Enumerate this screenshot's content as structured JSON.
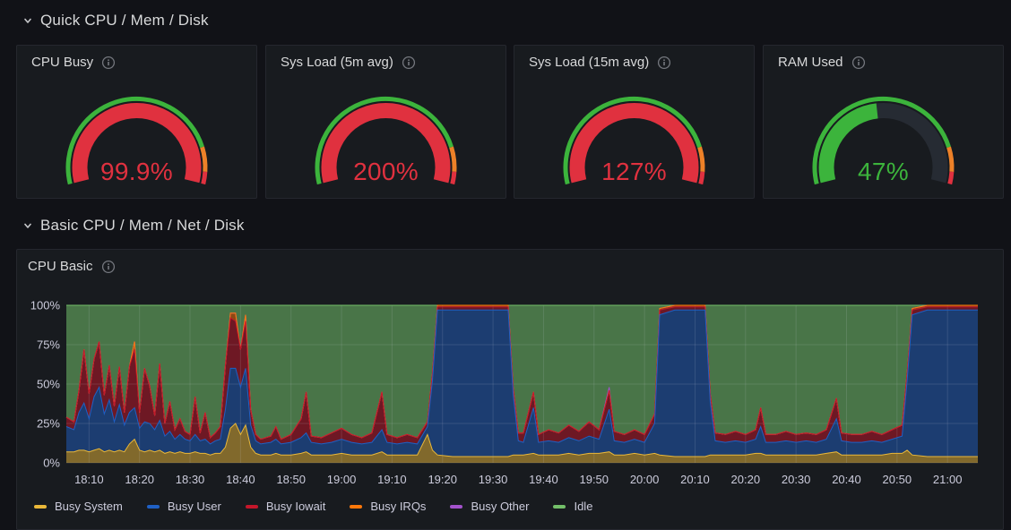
{
  "sections": {
    "quick": {
      "title": "Quick CPU / Mem / Disk"
    },
    "basic": {
      "title": "Basic CPU / Mem / Net / Disk"
    }
  },
  "gauges": [
    {
      "title": "CPU Busy",
      "display": "99.9%",
      "percent": 99.9,
      "level": "red"
    },
    {
      "title": "Sys Load (5m avg)",
      "display": "200%",
      "percent": 100,
      "level": "red"
    },
    {
      "title": "Sys Load (15m avg)",
      "display": "127%",
      "percent": 100,
      "level": "red"
    },
    {
      "title": "RAM Used",
      "display": "47%",
      "percent": 47,
      "level": "green"
    }
  ],
  "gauge_style": {
    "colors": {
      "green": "#3CB43C",
      "orange": "#ED8128",
      "red": "#E0313F"
    },
    "thresholds": [
      {
        "upto": 85,
        "color": "green"
      },
      {
        "upto": 95,
        "color": "orange"
      },
      {
        "upto": 100,
        "color": "red"
      }
    ],
    "track_color": "#262B33"
  },
  "cpu_basic_panel": {
    "title": "CPU Basic"
  },
  "chart_data": {
    "type": "area",
    "stacked": true,
    "unit": "%",
    "title": "CPU Basic",
    "ylim": [
      0,
      100
    ],
    "grid": true,
    "legend_position": "bottom",
    "y_ticks": [
      "0%",
      "25%",
      "50%",
      "75%",
      "100%"
    ],
    "x_tick_labels": [
      "18:10",
      "18:20",
      "18:30",
      "18:40",
      "18:50",
      "19:00",
      "19:10",
      "19:20",
      "19:30",
      "19:40",
      "19:50",
      "20:00",
      "20:10",
      "20:20",
      "20:30",
      "20:40",
      "20:50",
      "21:00"
    ],
    "x_tick_minutes": [
      4,
      14,
      24,
      34,
      44,
      54,
      64,
      74,
      84,
      94,
      104,
      114,
      124,
      134,
      144,
      154,
      164,
      174
    ],
    "series": [
      {
        "name": "Busy System",
        "color": "#EAB839"
      },
      {
        "name": "Busy User",
        "color": "#1F60C4"
      },
      {
        "name": "Busy Iowait",
        "color": "#C4162A"
      },
      {
        "name": "Busy IRQs",
        "color": "#FF780A"
      },
      {
        "name": "Busy Other",
        "color": "#A352CC"
      },
      {
        "name": "Idle",
        "color": "#73BF69",
        "computed": true
      }
    ],
    "points_format": [
      "minutes_since_18:06",
      "busy_system",
      "busy_user",
      "busy_iowait",
      "busy_irqs",
      "busy_other"
    ],
    "idle_fills_to": 100,
    "points": [
      [
        -0.5,
        7,
        16,
        6,
        0,
        0
      ],
      [
        1,
        7,
        14,
        5,
        0,
        0
      ],
      [
        2,
        8,
        24,
        14,
        0,
        0
      ],
      [
        3,
        8,
        30,
        34,
        0,
        0
      ],
      [
        4,
        7,
        21,
        16,
        0,
        0
      ],
      [
        5,
        8,
        34,
        24,
        0,
        0
      ],
      [
        6,
        9,
        39,
        29,
        0,
        0
      ],
      [
        7,
        7,
        24,
        12,
        0,
        0
      ],
      [
        8,
        8,
        32,
        22,
        0,
        0
      ],
      [
        9,
        7,
        19,
        10,
        0,
        0
      ],
      [
        10,
        8,
        29,
        24,
        0,
        0
      ],
      [
        11,
        7,
        17,
        8,
        0,
        0
      ],
      [
        12,
        12,
        20,
        29,
        0,
        0
      ],
      [
        13,
        15,
        20,
        37,
        5,
        0
      ],
      [
        14,
        8,
        14,
        10,
        0,
        0
      ],
      [
        15,
        7,
        19,
        34,
        0,
        0
      ],
      [
        16,
        8,
        17,
        24,
        0,
        0
      ],
      [
        17,
        7,
        14,
        9,
        0,
        0
      ],
      [
        18,
        8,
        19,
        36,
        0,
        0
      ],
      [
        19,
        6,
        11,
        8,
        0,
        0
      ],
      [
        20,
        7,
        13,
        19,
        0,
        0
      ],
      [
        21,
        6,
        9,
        6,
        0,
        0
      ],
      [
        22,
        7,
        11,
        10,
        0,
        0
      ],
      [
        23,
        6,
        9,
        5,
        0,
        0
      ],
      [
        24,
        6,
        8,
        4,
        0,
        0
      ],
      [
        25,
        7,
        11,
        24,
        0,
        0
      ],
      [
        26,
        6,
        8,
        5,
        0,
        0
      ],
      [
        27,
        6,
        9,
        17,
        0,
        0
      ],
      [
        28,
        5,
        7,
        4,
        0,
        0
      ],
      [
        29,
        6,
        8,
        5,
        0,
        0
      ],
      [
        30,
        6,
        9,
        8,
        0,
        0
      ],
      [
        31,
        10,
        24,
        28,
        0,
        0
      ],
      [
        32,
        22,
        38,
        32,
        3,
        0
      ],
      [
        33,
        25,
        35,
        30,
        5,
        0
      ],
      [
        34,
        18,
        30,
        24,
        0,
        0
      ],
      [
        35,
        24,
        36,
        30,
        4,
        0
      ],
      [
        36,
        10,
        14,
        10,
        0,
        0
      ],
      [
        37,
        6,
        8,
        4,
        0,
        0
      ],
      [
        38,
        5,
        7,
        3,
        0,
        0
      ],
      [
        40,
        5,
        8,
        4,
        0,
        0
      ],
      [
        41,
        6,
        9,
        8,
        0,
        0
      ],
      [
        42,
        5,
        7,
        3,
        0,
        0
      ],
      [
        44,
        5,
        8,
        5,
        0,
        0
      ],
      [
        46,
        6,
        10,
        12,
        0,
        0
      ],
      [
        47,
        7,
        12,
        26,
        0,
        0
      ],
      [
        48,
        5,
        8,
        4,
        0,
        0
      ],
      [
        50,
        5,
        7,
        4,
        0,
        0
      ],
      [
        52,
        5,
        8,
        6,
        0,
        0
      ],
      [
        54,
        6,
        9,
        7,
        0,
        0
      ],
      [
        56,
        5,
        8,
        5,
        0,
        0
      ],
      [
        58,
        5,
        7,
        4,
        0,
        0
      ],
      [
        60,
        5,
        8,
        6,
        0,
        0
      ],
      [
        62,
        7,
        14,
        24,
        0,
        0
      ],
      [
        63,
        5,
        8,
        5,
        0,
        0
      ],
      [
        65,
        5,
        7,
        4,
        0,
        0
      ],
      [
        67,
        5,
        8,
        5,
        0,
        0
      ],
      [
        69,
        5,
        7,
        4,
        0,
        0
      ],
      [
        71,
        18,
        5,
        3,
        0,
        0
      ],
      [
        72,
        8,
        44,
        5,
        0,
        0
      ],
      [
        73,
        5,
        92,
        2,
        1,
        0
      ],
      [
        76,
        4,
        93,
        2,
        1,
        0
      ],
      [
        79,
        4,
        93,
        2,
        1,
        0
      ],
      [
        82,
        4,
        93,
        2,
        1,
        0
      ],
      [
        85,
        4,
        93,
        2,
        1,
        0
      ],
      [
        87,
        4,
        93,
        2,
        1,
        0
      ],
      [
        88,
        5,
        38,
        5,
        0,
        0
      ],
      [
        89,
        5,
        9,
        5,
        0,
        0
      ],
      [
        90,
        5,
        8,
        6,
        0,
        0
      ],
      [
        92,
        6,
        29,
        10,
        0,
        0
      ],
      [
        93,
        5,
        8,
        5,
        0,
        0
      ],
      [
        95,
        5,
        9,
        7,
        0,
        0
      ],
      [
        97,
        5,
        8,
        6,
        0,
        0
      ],
      [
        99,
        6,
        10,
        8,
        0,
        0
      ],
      [
        101,
        5,
        9,
        6,
        0,
        0
      ],
      [
        103,
        6,
        11,
        9,
        0,
        0
      ],
      [
        105,
        6,
        9,
        6,
        0,
        0
      ],
      [
        107,
        7,
        27,
        12,
        0,
        2
      ],
      [
        108,
        5,
        9,
        6,
        0,
        0
      ],
      [
        110,
        5,
        8,
        5,
        0,
        0
      ],
      [
        112,
        6,
        9,
        6,
        0,
        0
      ],
      [
        114,
        5,
        8,
        5,
        0,
        0
      ],
      [
        116,
        6,
        19,
        6,
        0,
        0
      ],
      [
        117,
        5,
        89,
        3,
        1,
        0
      ],
      [
        120,
        4,
        93,
        2,
        1,
        0
      ],
      [
        123,
        4,
        93,
        2,
        1,
        0
      ],
      [
        126,
        4,
        93,
        2,
        1,
        0
      ],
      [
        127,
        5,
        34,
        5,
        0,
        0
      ],
      [
        128,
        5,
        9,
        5,
        0,
        0
      ],
      [
        130,
        5,
        8,
        5,
        0,
        0
      ],
      [
        132,
        5,
        9,
        6,
        0,
        0
      ],
      [
        134,
        5,
        8,
        5,
        0,
        0
      ],
      [
        136,
        6,
        9,
        6,
        0,
        0
      ],
      [
        137,
        6,
        17,
        12,
        0,
        0
      ],
      [
        138,
        5,
        8,
        5,
        0,
        0
      ],
      [
        140,
        5,
        8,
        5,
        0,
        0
      ],
      [
        142,
        5,
        9,
        6,
        0,
        0
      ],
      [
        144,
        5,
        8,
        5,
        0,
        0
      ],
      [
        146,
        5,
        9,
        5,
        0,
        0
      ],
      [
        148,
        5,
        8,
        5,
        0,
        0
      ],
      [
        150,
        6,
        9,
        6,
        0,
        0
      ],
      [
        152,
        7,
        21,
        13,
        0,
        0
      ],
      [
        153,
        5,
        9,
        5,
        0,
        0
      ],
      [
        155,
        5,
        8,
        5,
        0,
        0
      ],
      [
        157,
        5,
        8,
        5,
        0,
        0
      ],
      [
        159,
        5,
        9,
        6,
        0,
        0
      ],
      [
        161,
        5,
        8,
        5,
        0,
        0
      ],
      [
        163,
        6,
        9,
        6,
        0,
        0
      ],
      [
        165,
        6,
        11,
        7,
        0,
        0
      ],
      [
        166,
        8,
        44,
        5,
        0,
        0
      ],
      [
        167,
        5,
        89,
        3,
        1,
        0
      ],
      [
        170,
        4,
        93,
        2,
        1,
        0
      ],
      [
        173,
        4,
        93,
        2,
        1,
        0
      ],
      [
        176,
        4,
        93,
        2,
        1,
        0
      ],
      [
        180,
        4,
        93,
        2,
        1,
        0
      ]
    ]
  }
}
